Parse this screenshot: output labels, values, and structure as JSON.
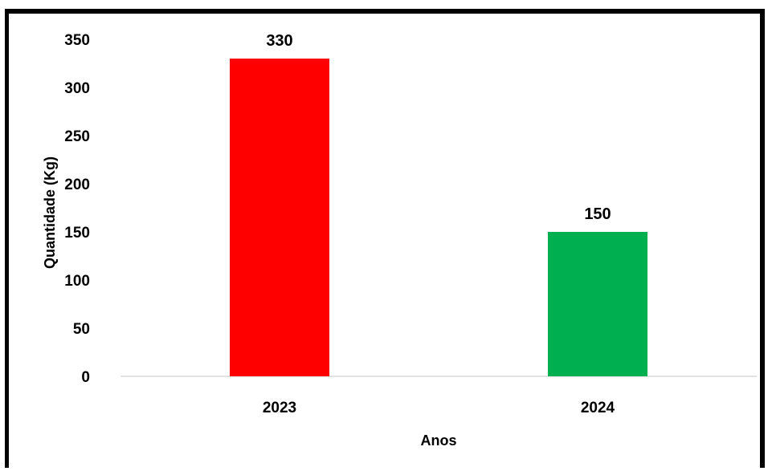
{
  "chart_data": {
    "type": "bar",
    "categories": [
      "2023",
      "2024"
    ],
    "values": [
      330,
      150
    ],
    "colors": [
      "#ff0000",
      "#00b050"
    ],
    "title": "",
    "xlabel": "Anos",
    "ylabel": "Quantidade (Kg)",
    "ylim": [
      0,
      350
    ],
    "yticks": [
      "0",
      "50",
      "100",
      "150",
      "200",
      "250",
      "300",
      "350"
    ],
    "data_labels": [
      "330",
      "150"
    ],
    "grid": false,
    "legend": "none"
  }
}
